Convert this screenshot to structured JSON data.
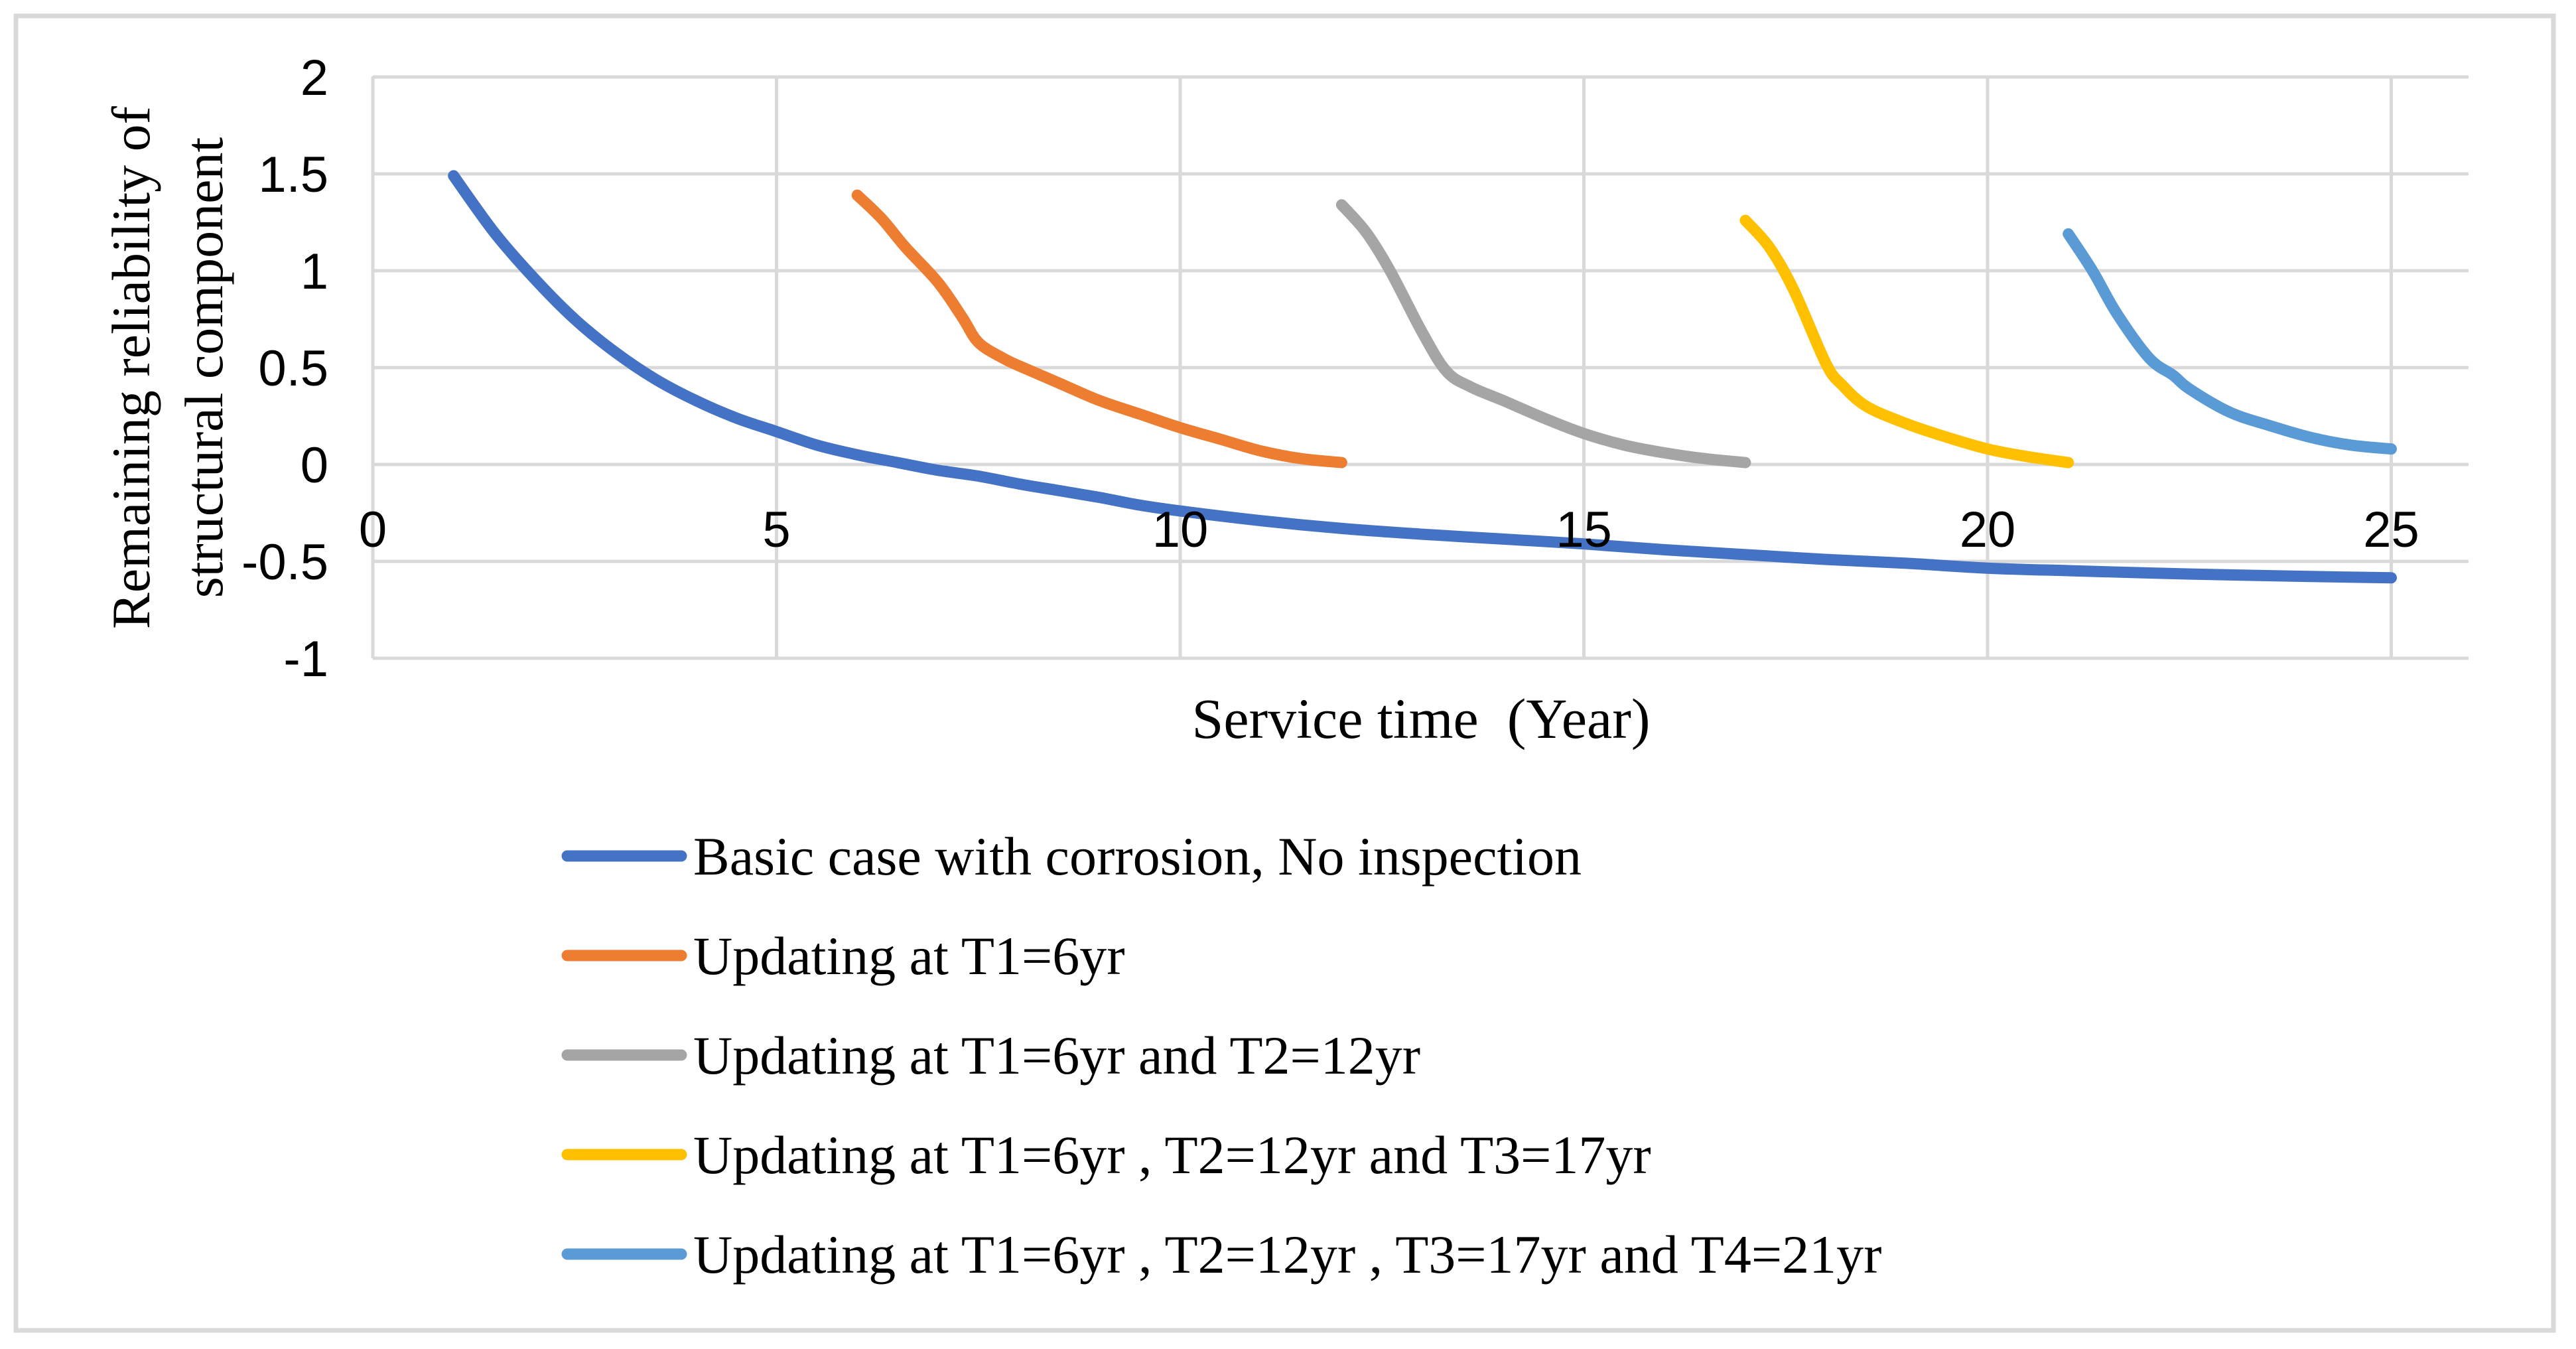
{
  "figure": {
    "background": "#FFFFFF",
    "frame_color": "#D9D9D9",
    "gridline_color": "#D9D9D9",
    "text_color": "#000000"
  },
  "chart_data": {
    "type": "line",
    "title": "",
    "xlabel": "Service time  (Year)",
    "ylabel_line1": "Remaining reliability of",
    "ylabel_line2": "structural component",
    "ylabel": "Remaining reliability of structural component",
    "xlim": [
      0,
      26
    ],
    "ylim": [
      -1,
      2
    ],
    "xticks": [
      "0",
      "5",
      "10",
      "15",
      "20",
      "25"
    ],
    "xtick_values": [
      0,
      5,
      10,
      15,
      20,
      25
    ],
    "yticks": [
      "2",
      "1.5",
      "1",
      "0.5",
      "0",
      "-0.5",
      "-1"
    ],
    "ytick_values": [
      2,
      1.5,
      1,
      0.5,
      0,
      -0.5,
      -1
    ],
    "grid": true,
    "legend_position": "bottom-left",
    "series": [
      {
        "name": "Basic case with corrosion, No inspection",
        "color": "#4472C4",
        "points": [
          [
            1,
            1.49
          ],
          [
            1.5,
            1.2
          ],
          [
            2,
            0.96
          ],
          [
            2.5,
            0.75
          ],
          [
            3,
            0.58
          ],
          [
            3.5,
            0.44
          ],
          [
            4,
            0.33
          ],
          [
            4.5,
            0.24
          ],
          [
            5,
            0.17
          ],
          [
            5.5,
            0.1
          ],
          [
            6,
            0.05
          ],
          [
            6.5,
            0.01
          ],
          [
            7,
            -0.03
          ],
          [
            7.5,
            -0.06
          ],
          [
            8,
            -0.1
          ],
          [
            8.5,
            -0.135
          ],
          [
            9,
            -0.17
          ],
          [
            9.5,
            -0.21
          ],
          [
            10,
            -0.24
          ],
          [
            11,
            -0.29
          ],
          [
            12,
            -0.33
          ],
          [
            13,
            -0.36
          ],
          [
            14,
            -0.385
          ],
          [
            15,
            -0.41
          ],
          [
            16,
            -0.44
          ],
          [
            17,
            -0.465
          ],
          [
            18,
            -0.49
          ],
          [
            19,
            -0.51
          ],
          [
            20,
            -0.535
          ],
          [
            21,
            -0.548
          ],
          [
            22,
            -0.56
          ],
          [
            23,
            -0.57
          ],
          [
            24,
            -0.578
          ],
          [
            25,
            -0.585
          ]
        ]
      },
      {
        "name": "Updating at T1=6yr",
        "color": "#ED7D31",
        "points": [
          [
            6,
            1.39
          ],
          [
            6.3,
            1.27
          ],
          [
            6.6,
            1.12
          ],
          [
            7,
            0.94
          ],
          [
            7.3,
            0.76
          ],
          [
            7.5,
            0.63
          ],
          [
            7.8,
            0.55
          ],
          [
            8,
            0.51
          ],
          [
            8.5,
            0.42
          ],
          [
            9,
            0.33
          ],
          [
            9.5,
            0.26
          ],
          [
            10,
            0.19
          ],
          [
            10.5,
            0.13
          ],
          [
            11,
            0.07
          ],
          [
            11.5,
            0.03
          ],
          [
            12,
            0.01
          ]
        ]
      },
      {
        "name": "Updating at T1=6yr and T2=12yr",
        "color": "#A5A5A5",
        "points": [
          [
            12,
            1.34
          ],
          [
            12.3,
            1.2
          ],
          [
            12.6,
            1.0
          ],
          [
            13,
            0.68
          ],
          [
            13.3,
            0.48
          ],
          [
            13.6,
            0.4
          ],
          [
            14,
            0.33
          ],
          [
            14.5,
            0.24
          ],
          [
            15,
            0.16
          ],
          [
            15.5,
            0.1
          ],
          [
            16,
            0.06
          ],
          [
            16.5,
            0.03
          ],
          [
            17,
            0.01
          ]
        ]
      },
      {
        "name": "Updating at T1=6yr , T2=12yr and T3=17yr",
        "color": "#FFC000",
        "points": [
          [
            17,
            1.26
          ],
          [
            17.3,
            1.12
          ],
          [
            17.6,
            0.9
          ],
          [
            18,
            0.52
          ],
          [
            18.2,
            0.41
          ],
          [
            18.5,
            0.3
          ],
          [
            19,
            0.21
          ],
          [
            19.5,
            0.14
          ],
          [
            20,
            0.08
          ],
          [
            20.5,
            0.04
          ],
          [
            21,
            0.01
          ]
        ]
      },
      {
        "name": "Updating at T1=6yr , T2=12yr , T3=17yr and T4=21yr",
        "color": "#5B9BD5",
        "points": [
          [
            21,
            1.19
          ],
          [
            21.3,
            1.0
          ],
          [
            21.6,
            0.78
          ],
          [
            22,
            0.55
          ],
          [
            22.3,
            0.46
          ],
          [
            22.5,
            0.39
          ],
          [
            23,
            0.27
          ],
          [
            23.5,
            0.2
          ],
          [
            24,
            0.14
          ],
          [
            24.5,
            0.1
          ],
          [
            25,
            0.08
          ]
        ]
      }
    ]
  }
}
